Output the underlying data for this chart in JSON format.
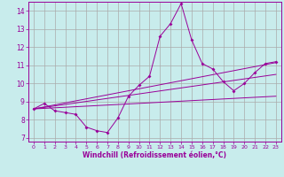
{
  "xlabel": "Windchill (Refroidissement éolien,°C)",
  "background_color": "#c8ecec",
  "line_color": "#990099",
  "xlim": [
    -0.5,
    23.5
  ],
  "ylim": [
    6.8,
    14.5
  ],
  "xticks": [
    0,
    1,
    2,
    3,
    4,
    5,
    6,
    7,
    8,
    9,
    10,
    11,
    12,
    13,
    14,
    15,
    16,
    17,
    18,
    19,
    20,
    21,
    22,
    23
  ],
  "yticks": [
    7,
    8,
    9,
    10,
    11,
    12,
    13,
    14
  ],
  "grid_color": "#aaaaaa",
  "series1_x": [
    0,
    1,
    2,
    3,
    4,
    5,
    6,
    7,
    8,
    9,
    10,
    11,
    12,
    13,
    14,
    15,
    16,
    17,
    18,
    19,
    20,
    21,
    22,
    23
  ],
  "series1_y": [
    8.6,
    8.9,
    8.5,
    8.4,
    8.3,
    7.6,
    7.4,
    7.3,
    8.1,
    9.3,
    9.9,
    10.4,
    12.6,
    13.3,
    14.4,
    12.4,
    11.1,
    10.8,
    10.1,
    9.6,
    10.0,
    10.6,
    11.1,
    11.2
  ],
  "series2_x": [
    0,
    23
  ],
  "series2_y": [
    8.6,
    11.15
  ],
  "series3_x": [
    0,
    23
  ],
  "series3_y": [
    8.6,
    10.5
  ],
  "series4_x": [
    0,
    23
  ],
  "series4_y": [
    8.6,
    9.3
  ]
}
